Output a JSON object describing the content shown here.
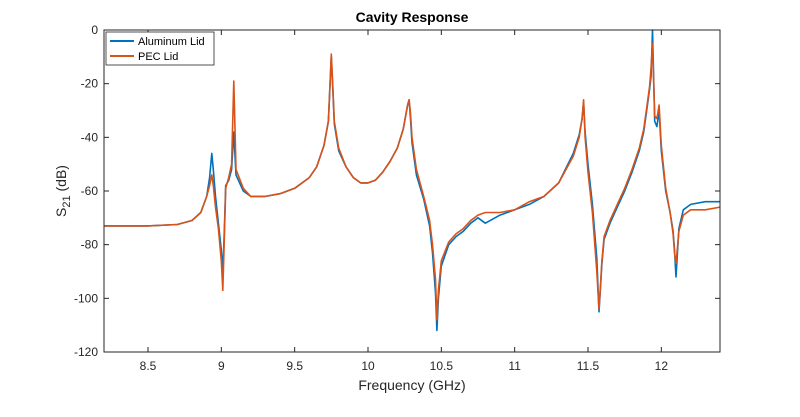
{
  "chart_data": {
    "type": "line",
    "title": "Cavity Response",
    "xlabel": "Frequency (GHz)",
    "ylabel_main": "S",
    "ylabel_sub": "21",
    "ylabel_unit": " (dB)",
    "xlim": [
      8.2,
      12.4
    ],
    "ylim": [
      -120,
      0
    ],
    "xticks": [
      8.5,
      9,
      9.5,
      10,
      10.5,
      11,
      11.5,
      12
    ],
    "xtick_labels": [
      "8.5",
      "9",
      "9.5",
      "10",
      "10.5",
      "11",
      "11.5",
      "12"
    ],
    "yticks": [
      -120,
      -100,
      -80,
      -60,
      -40,
      -20,
      0
    ],
    "ytick_labels": [
      "-120",
      "-100",
      "-80",
      "-60",
      "-40",
      "-20",
      "0"
    ],
    "grid": false,
    "legend_position": "top-left",
    "series": [
      {
        "name": "Aluminum Lid",
        "color": "#0072BD",
        "x": [
          8.2,
          8.5,
          8.7,
          8.8,
          8.86,
          8.9,
          8.92,
          8.935,
          8.945,
          8.96,
          8.98,
          9.0,
          9.01,
          9.02,
          9.03,
          9.05,
          9.07,
          9.085,
          9.1,
          9.15,
          9.2,
          9.3,
          9.4,
          9.5,
          9.6,
          9.65,
          9.7,
          9.73,
          9.75,
          9.76,
          9.77,
          9.8,
          9.85,
          9.9,
          9.95,
          10.0,
          10.05,
          10.1,
          10.15,
          10.2,
          10.24,
          10.27,
          10.28,
          10.29,
          10.3,
          10.33,
          10.38,
          10.42,
          10.44,
          10.46,
          10.47,
          10.48,
          10.5,
          10.55,
          10.6,
          10.65,
          10.7,
          10.75,
          10.8,
          10.9,
          11.0,
          11.1,
          11.2,
          11.3,
          11.4,
          11.44,
          11.46,
          11.47,
          11.48,
          11.5,
          11.53,
          11.56,
          11.575,
          11.585,
          11.595,
          11.61,
          11.65,
          11.7,
          11.75,
          11.8,
          11.85,
          11.88,
          11.9,
          11.92,
          11.93,
          11.94,
          11.955,
          11.97,
          11.985,
          12.0,
          12.03,
          12.06,
          12.08,
          12.09,
          12.1,
          12.12,
          12.15,
          12.2,
          12.3,
          12.4
        ],
        "y": [
          -73,
          -73,
          -72.5,
          -71,
          -68,
          -62,
          -55,
          -46,
          -52,
          -62,
          -72,
          -82,
          -90,
          -75,
          -58,
          -56,
          -52,
          -38,
          -54,
          -60,
          -62,
          -62,
          -61,
          -59,
          -55,
          -51,
          -43,
          -34,
          -10,
          -22,
          -35,
          -45,
          -51,
          -55,
          -57,
          -57,
          -56,
          -53,
          -49,
          -44,
          -37,
          -28,
          -26,
          -33,
          -42,
          -54,
          -63,
          -73,
          -83,
          -98,
          -112,
          -100,
          -88,
          -80,
          -77,
          -75,
          -72,
          -70,
          -72,
          -69,
          -67,
          -65,
          -62,
          -57,
          -46,
          -39,
          -33,
          -27,
          -38,
          -50,
          -65,
          -85,
          -105,
          -96,
          -87,
          -78,
          -72,
          -66,
          -60,
          -53,
          -45,
          -38,
          -30,
          -22,
          -17,
          0,
          -34,
          -36,
          -30,
          -45,
          -60,
          -68,
          -75,
          -82,
          -92,
          -74,
          -67,
          -65,
          -64,
          -64
        ]
      },
      {
        "name": "PEC Lid",
        "color": "#D95319",
        "x": [
          8.2,
          8.5,
          8.7,
          8.8,
          8.86,
          8.9,
          8.92,
          8.935,
          8.945,
          8.96,
          8.98,
          9.0,
          9.01,
          9.02,
          9.03,
          9.05,
          9.07,
          9.085,
          9.1,
          9.15,
          9.2,
          9.3,
          9.4,
          9.5,
          9.6,
          9.65,
          9.7,
          9.73,
          9.75,
          9.76,
          9.77,
          9.8,
          9.85,
          9.9,
          9.95,
          10.0,
          10.05,
          10.1,
          10.15,
          10.2,
          10.24,
          10.27,
          10.28,
          10.29,
          10.3,
          10.33,
          10.38,
          10.42,
          10.44,
          10.46,
          10.47,
          10.48,
          10.5,
          10.55,
          10.6,
          10.65,
          10.7,
          10.75,
          10.8,
          10.9,
          11.0,
          11.1,
          11.2,
          11.3,
          11.4,
          11.44,
          11.46,
          11.47,
          11.48,
          11.5,
          11.53,
          11.56,
          11.575,
          11.585,
          11.595,
          11.61,
          11.65,
          11.7,
          11.75,
          11.8,
          11.85,
          11.88,
          11.9,
          11.92,
          11.93,
          11.94,
          11.955,
          11.97,
          11.985,
          12.0,
          12.03,
          12.06,
          12.08,
          12.09,
          12.1,
          12.12,
          12.15,
          12.2,
          12.3,
          12.4
        ],
        "y": [
          -73,
          -73,
          -72.5,
          -71,
          -68,
          -62,
          -58,
          -54,
          -58,
          -66,
          -74,
          -86,
          -97,
          -78,
          -59,
          -55,
          -50,
          -19,
          -52,
          -59,
          -62,
          -62,
          -61,
          -59,
          -55,
          -51,
          -43,
          -34,
          -9,
          -21,
          -34,
          -44,
          -51,
          -55,
          -57,
          -57,
          -56,
          -53,
          -49,
          -44,
          -37,
          -28,
          -26,
          -31,
          -40,
          -52,
          -62,
          -71,
          -80,
          -93,
          -108,
          -97,
          -86,
          -79,
          -76,
          -74,
          -71,
          -69,
          -68,
          -68,
          -67,
          -64,
          -62,
          -57,
          -47,
          -40,
          -33,
          -26,
          -40,
          -53,
          -68,
          -90,
          -104,
          -95,
          -86,
          -77,
          -71,
          -65,
          -59,
          -52,
          -44,
          -37,
          -29,
          -21,
          -14,
          -5,
          -32,
          -33,
          -28,
          -43,
          -59,
          -68,
          -76,
          -83,
          -87,
          -75,
          -69,
          -67,
          -67,
          -66
        ]
      }
    ]
  }
}
